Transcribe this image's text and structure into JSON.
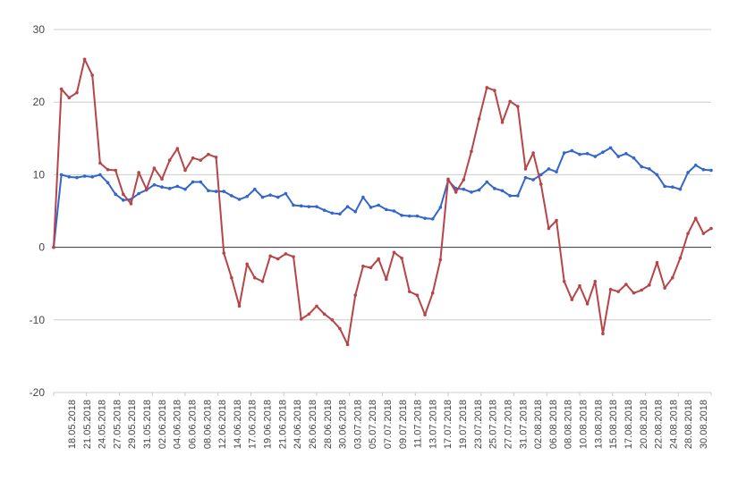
{
  "chart_data": {
    "type": "line",
    "title": "",
    "xlabel": "",
    "ylabel": "",
    "ylim": [
      -20,
      30
    ],
    "yticks": [
      30,
      20,
      10,
      0,
      -10,
      -20
    ],
    "grid": true,
    "legend": "none",
    "x_tick_labels": [
      "18.05.2018",
      "21.05.2018",
      "24.05.2018",
      "27.05.2018",
      "29.05.2018",
      "31.05.2018",
      "02.06.2018",
      "04.06.2018",
      "06.06.2018",
      "08.06.2018",
      "12.06.2018",
      "14.06.2018",
      "17.06.2018",
      "19.06.2018",
      "21.06.2018",
      "24.06.2018",
      "26.06.2018",
      "28.06.2018",
      "30.06.2018",
      "03.07.2018",
      "05.07.2018",
      "07.07.2018",
      "09.07.2018",
      "11.07.2018",
      "13.07.2018",
      "17.07.2018",
      "19.07.2018",
      "23.07.2018",
      "25.07.2018",
      "27.07.2018",
      "31.07.2018",
      "02.08.2018",
      "06.08.2018",
      "08.08.2018",
      "10.08.2018",
      "13.08.2018",
      "15.08.2018",
      "17.08.2018",
      "20.08.2018",
      "22.08.2018",
      "24.08.2018",
      "28.08.2018",
      "30.08.2018"
    ],
    "series": [
      {
        "color": "#3366cc",
        "values": [
          0,
          10.0,
          9.7,
          9.6,
          9.8,
          9.7,
          10.0,
          8.9,
          7.3,
          6.5,
          6.6,
          7.4,
          7.9,
          8.6,
          8.3,
          8.1,
          8.4,
          8.0,
          9.0,
          9.0,
          7.8,
          7.7,
          7.7,
          7.1,
          6.6,
          7.0,
          8.0,
          6.9,
          7.2,
          6.9,
          7.4,
          5.8,
          5.7,
          5.6,
          5.6,
          5.1,
          4.7,
          4.6,
          5.6,
          4.9,
          6.9,
          5.5,
          5.8,
          5.2,
          5.0,
          4.4,
          4.3,
          4.3,
          4.0,
          3.9,
          5.5,
          9.2,
          8.1,
          8.0,
          7.6,
          7.9,
          9.0,
          8.1,
          7.8,
          7.1,
          7.1,
          9.6,
          9.3,
          10.0,
          10.8,
          10.4,
          13.0,
          13.3,
          12.8,
          12.9,
          12.5,
          13.1,
          13.7,
          12.5,
          12.9,
          12.3,
          11.1,
          10.8,
          10.0,
          8.4,
          8.3,
          8.0,
          10.3,
          11.3,
          10.7,
          10.6
        ]
      },
      {
        "color": "#b74447",
        "values": [
          0,
          21.8,
          20.6,
          21.3,
          25.9,
          23.7,
          11.6,
          10.7,
          10.6,
          7.3,
          6.0,
          10.3,
          8.0,
          10.9,
          9.4,
          12.0,
          13.6,
          10.6,
          12.3,
          12.0,
          12.8,
          12.4,
          -0.8,
          -4.2,
          -8.1,
          -2.3,
          -4.2,
          -4.7,
          -1.2,
          -1.6,
          -0.9,
          -1.3,
          -9.9,
          -9.2,
          -8.1,
          -9.2,
          -10.0,
          -11.2,
          -13.4,
          -6.6,
          -2.6,
          -2.8,
          -1.6,
          -4.4,
          -0.7,
          -1.5,
          -6.1,
          -6.6,
          -9.3,
          -6.3,
          -1.7,
          9.4,
          7.6,
          9.3,
          13.2,
          17.7,
          22.0,
          21.6,
          17.2,
          20.1,
          19.4,
          10.8,
          13.0,
          8.7,
          2.6,
          3.7,
          -4.7,
          -7.2,
          -5.3,
          -7.8,
          -4.7,
          -11.9,
          -5.8,
          -6.1,
          -5.1,
          -6.3,
          -5.9,
          -5.2,
          -2.1,
          -5.6,
          -4.2,
          -1.5,
          1.9,
          4.0,
          1.9,
          2.6
        ]
      }
    ]
  }
}
